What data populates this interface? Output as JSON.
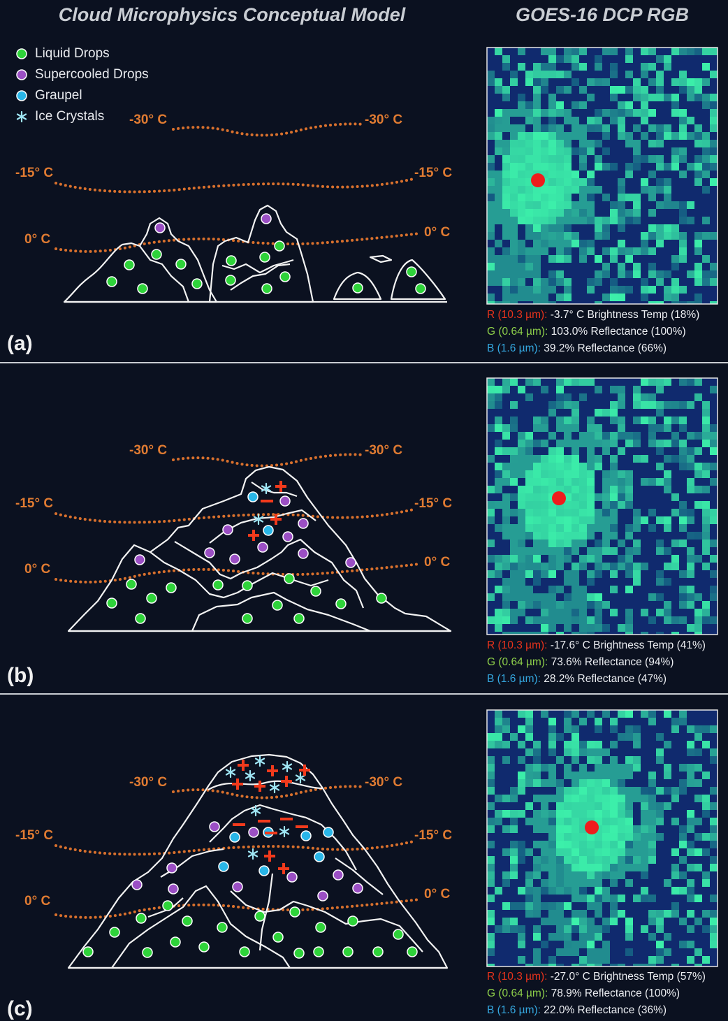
{
  "header": {
    "left_title": "Cloud Microphysics Conceptual Model",
    "right_title": "GOES-16 DCP RGB"
  },
  "legend": [
    {
      "label": "Liquid Drops",
      "color": "#2fd33a"
    },
    {
      "label": "Supercooled Drops",
      "color": "#9b4fc4"
    },
    {
      "label": "Graupel",
      "color": "#29b6e8"
    },
    {
      "label": "Ice Crystals",
      "color": "#9fe6f5"
    }
  ],
  "panels": [
    {
      "label": "(a)",
      "isotherms": [
        {
          "left": "-30° C",
          "right": "-30° C"
        },
        {
          "left": "-15° C",
          "right": "-15° C"
        },
        {
          "left": "0° C",
          "right": "0° C"
        }
      ],
      "channels": [
        {
          "band": "R (10.3 µm):",
          "color": "#e8331c",
          "text": "-3.7° C Brightness Temp (18%)"
        },
        {
          "band": "G (0.64 µm):",
          "color": "#8ed04a",
          "text": "103.0% Reflectance (100%)"
        },
        {
          "band": "B (1.6 µm):",
          "color": "#35a8e0",
          "text": "39.2% Reflectance (66%)"
        }
      ]
    },
    {
      "label": "(b)",
      "isotherms": [
        {
          "left": "-30° C",
          "right": "-30° C"
        },
        {
          "left": "-15° C",
          "right": "-15° C"
        },
        {
          "left": "0° C",
          "right": "0° C"
        }
      ],
      "channels": [
        {
          "band": "R (10.3 µm):",
          "color": "#e8331c",
          "text": "-17.6° C Brightness Temp (41%)"
        },
        {
          "band": "G (0.64 µm):",
          "color": "#8ed04a",
          "text": "73.6% Reflectance (94%)"
        },
        {
          "band": "B (1.6 µm):",
          "color": "#35a8e0",
          "text": "28.2% Reflectance (47%)"
        }
      ]
    },
    {
      "label": "(c)",
      "isotherms": [
        {
          "left": "-30° C",
          "right": "-30° C"
        },
        {
          "left": "-15° C",
          "right": "-15° C"
        },
        {
          "left": "0° C",
          "right": "0° C"
        }
      ],
      "channels": [
        {
          "band": "R (10.3 µm):",
          "color": "#e8331c",
          "text": "-27.0° C Brightness Temp (57%)"
        },
        {
          "band": "G (0.64 µm):",
          "color": "#8ed04a",
          "text": "78.9% Reflectance (100%)"
        },
        {
          "band": "B (1.6 µm):",
          "color": "#35a8e0",
          "text": "22.0% Reflectance (36%)"
        }
      ]
    }
  ]
}
